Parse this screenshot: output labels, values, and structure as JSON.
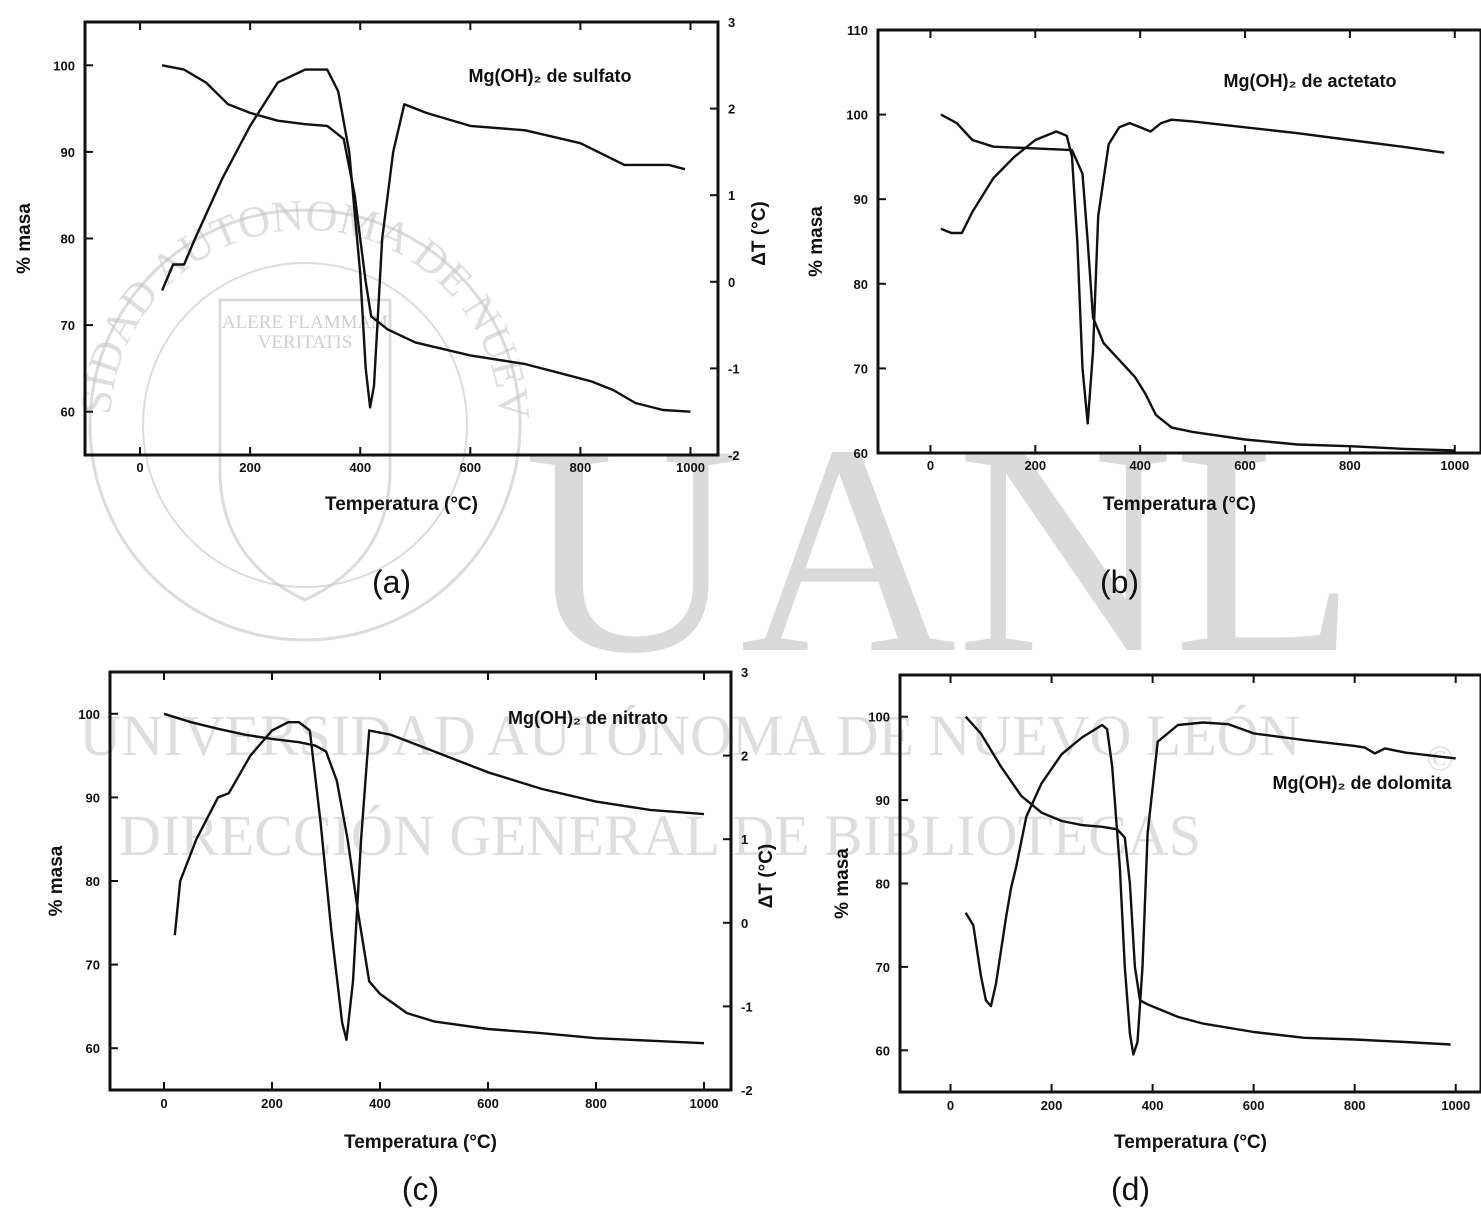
{
  "watermark": {
    "big": "UANL",
    "line1": "UNIVERSIDAD AUTÓNOMA DE NUEVO LEÓN",
    "line2": "DIRECCIÓN GENERAL DE BIBLIOTECAS",
    "seal_ring": "UNIVERSIDAD AUTONOMA DE NUEVO LEON",
    "seal_motto_1": "ALERE FLAMMAM",
    "seal_motto_2": "VERITATIS",
    "copyright": "©"
  },
  "chart_data": [
    {
      "panel": "(a)",
      "type": "line",
      "title": "Mg(OH)₂ de sulfato",
      "xlabel": "Temperatura (°C)",
      "ylabel": "% masa",
      "y2label": "ΔT (°C)",
      "xlim": [
        -100,
        1050
      ],
      "ylim": [
        55,
        105
      ],
      "y2lim": [
        -2,
        3
      ],
      "xticks": [
        "0",
        "200",
        "400",
        "600",
        "800",
        "1000"
      ],
      "yticks": [
        "60",
        "70",
        "80",
        "90",
        "100"
      ],
      "y2ticks": [
        "-2",
        "-1",
        "0",
        "1",
        "2",
        "3"
      ],
      "series": [
        {
          "axis": "left",
          "points": [
            [
              40,
              100
            ],
            [
              80,
              99.5
            ],
            [
              120,
              98
            ],
            [
              160,
              95.5
            ],
            [
              200,
              94.5
            ],
            [
              250,
              93.6
            ],
            [
              300,
              93.2
            ],
            [
              340,
              93
            ],
            [
              370,
              91.5
            ],
            [
              390,
              85
            ],
            [
              410,
              75
            ],
            [
              420,
              71
            ],
            [
              450,
              69.5
            ],
            [
              500,
              68
            ],
            [
              600,
              66.5
            ],
            [
              700,
              65.5
            ],
            [
              760,
              64.5
            ],
            [
              820,
              63.5
            ],
            [
              860,
              62.5
            ],
            [
              900,
              61
            ],
            [
              950,
              60.2
            ],
            [
              1000,
              60
            ]
          ]
        },
        {
          "axis": "right",
          "points": [
            [
              40,
              -0.1
            ],
            [
              60,
              0.2
            ],
            [
              70,
              0.2
            ],
            [
              80,
              0.2
            ],
            [
              100,
              0.5
            ],
            [
              150,
              1.2
            ],
            [
              200,
              1.8
            ],
            [
              250,
              2.3
            ],
            [
              300,
              2.45
            ],
            [
              340,
              2.45
            ],
            [
              360,
              2.2
            ],
            [
              380,
              1.5
            ],
            [
              400,
              0.1
            ],
            [
              410,
              -1
            ],
            [
              418,
              -1.45
            ],
            [
              425,
              -1.2
            ],
            [
              440,
              0.5
            ],
            [
              460,
              1.5
            ],
            [
              480,
              2.05
            ],
            [
              520,
              1.95
            ],
            [
              600,
              1.8
            ],
            [
              700,
              1.75
            ],
            [
              800,
              1.6
            ],
            [
              880,
              1.35
            ],
            [
              920,
              1.35
            ],
            [
              960,
              1.35
            ],
            [
              990,
              1.3
            ]
          ]
        }
      ]
    },
    {
      "panel": "(b)",
      "type": "line",
      "title": "Mg(OH)₂ de actetato",
      "xlabel": "Temperatura (°C)",
      "ylabel": "% masa",
      "xlim": [
        -100,
        1050
      ],
      "ylim": [
        60,
        110
      ],
      "xticks": [
        "0",
        "200",
        "400",
        "600",
        "800",
        "1000"
      ],
      "yticks": [
        "60",
        "70",
        "80",
        "90",
        "100",
        "110"
      ],
      "series": [
        {
          "axis": "left",
          "points": [
            [
              20,
              100
            ],
            [
              50,
              99
            ],
            [
              80,
              97
            ],
            [
              120,
              96.2
            ],
            [
              200,
              96
            ],
            [
              270,
              95.8
            ],
            [
              290,
              93
            ],
            [
              300,
              85
            ],
            [
              310,
              76
            ],
            [
              330,
              73
            ],
            [
              360,
              71
            ],
            [
              390,
              69
            ],
            [
              410,
              67
            ],
            [
              430,
              64.5
            ],
            [
              460,
              63
            ],
            [
              500,
              62.5
            ],
            [
              600,
              61.6
            ],
            [
              700,
              61
            ],
            [
              800,
              60.8
            ],
            [
              900,
              60.5
            ],
            [
              1000,
              60.3
            ]
          ]
        },
        {
          "axis": "right",
          "points": [
            [
              20,
              86.5
            ],
            [
              40,
              86
            ],
            [
              60,
              86
            ],
            [
              80,
              88.5
            ],
            [
              120,
              92.5
            ],
            [
              160,
              95
            ],
            [
              200,
              97
            ],
            [
              240,
              98
            ],
            [
              260,
              97.5
            ],
            [
              270,
              95
            ],
            [
              280,
              85
            ],
            [
              290,
              70
            ],
            [
              300,
              63.5
            ],
            [
              310,
              72
            ],
            [
              320,
              88
            ],
            [
              340,
              96.5
            ],
            [
              360,
              98.5
            ],
            [
              380,
              99
            ],
            [
              400,
              98.5
            ],
            [
              420,
              98
            ],
            [
              440,
              99
            ],
            [
              460,
              99.4
            ],
            [
              500,
              99.2
            ],
            [
              600,
              98.5
            ],
            [
              700,
              97.8
            ],
            [
              800,
              97
            ],
            [
              900,
              96.2
            ],
            [
              980,
              95.5
            ]
          ]
        }
      ]
    },
    {
      "panel": "(c)",
      "type": "line",
      "title": "Mg(OH)₂ de nitrato",
      "xlabel": "Temperatura (°C)",
      "ylabel": "% masa",
      "y2label": "ΔT (°C)",
      "xlim": [
        -100,
        1050
      ],
      "ylim": [
        55,
        105
      ],
      "y2lim": [
        -2,
        3
      ],
      "xticks": [
        "0",
        "200",
        "400",
        "600",
        "800",
        "1000"
      ],
      "yticks": [
        "60",
        "70",
        "80",
        "90",
        "100"
      ],
      "y2ticks": [
        "-2",
        "-1",
        "0",
        "1",
        "2",
        "3"
      ],
      "series": [
        {
          "axis": "left",
          "points": [
            [
              0,
              100
            ],
            [
              50,
              99
            ],
            [
              100,
              98.2
            ],
            [
              150,
              97.5
            ],
            [
              200,
              97
            ],
            [
              250,
              96.6
            ],
            [
              280,
              96.2
            ],
            [
              300,
              95.5
            ],
            [
              320,
              92
            ],
            [
              340,
              85
            ],
            [
              360,
              76
            ],
            [
              380,
              68
            ],
            [
              400,
              66.5
            ],
            [
              450,
              64.2
            ],
            [
              500,
              63.2
            ],
            [
              600,
              62.3
            ],
            [
              700,
              61.8
            ],
            [
              800,
              61.2
            ],
            [
              900,
              60.9
            ],
            [
              1000,
              60.6
            ]
          ]
        },
        {
          "axis": "right",
          "points": [
            [
              20,
              -0.15
            ],
            [
              30,
              0.5
            ],
            [
              60,
              1
            ],
            [
              100,
              1.5
            ],
            [
              120,
              1.55
            ],
            [
              160,
              2.0
            ],
            [
              200,
              2.3
            ],
            [
              230,
              2.4
            ],
            [
              250,
              2.4
            ],
            [
              270,
              2.3
            ],
            [
              290,
              1.2
            ],
            [
              310,
              -0.1
            ],
            [
              330,
              -1.2
            ],
            [
              338,
              -1.4
            ],
            [
              350,
              -0.7
            ],
            [
              365,
              1.0
            ],
            [
              380,
              2.3
            ],
            [
              420,
              2.25
            ],
            [
              500,
              2.05
            ],
            [
              600,
              1.8
            ],
            [
              700,
              1.6
            ],
            [
              800,
              1.45
            ],
            [
              900,
              1.35
            ],
            [
              1000,
              1.3
            ]
          ]
        }
      ]
    },
    {
      "panel": "(d)",
      "type": "line",
      "title": "Mg(OH)₂ de dolomita",
      "xlabel": "Temperatura (°C)",
      "ylabel": "% masa",
      "xlim": [
        -100,
        1050
      ],
      "ylim": [
        55,
        105
      ],
      "xticks": [
        "0",
        "200",
        "400",
        "600",
        "800",
        "1000"
      ],
      "yticks": [
        "60",
        "70",
        "80",
        "90",
        "100"
      ],
      "series": [
        {
          "axis": "left",
          "points": [
            [
              30,
              100
            ],
            [
              60,
              98
            ],
            [
              100,
              94
            ],
            [
              140,
              90.5
            ],
            [
              180,
              88.5
            ],
            [
              220,
              87.5
            ],
            [
              260,
              87
            ],
            [
              300,
              86.8
            ],
            [
              330,
              86.5
            ],
            [
              345,
              85.5
            ],
            [
              355,
              80
            ],
            [
              365,
              70
            ],
            [
              375,
              66
            ],
            [
              390,
              65.5
            ],
            [
              450,
              64
            ],
            [
              500,
              63.2
            ],
            [
              600,
              62.2
            ],
            [
              700,
              61.5
            ],
            [
              800,
              61.3
            ],
            [
              900,
              61
            ],
            [
              990,
              60.7
            ]
          ]
        },
        {
          "axis": "right",
          "points": [
            [
              30,
              76.5
            ],
            [
              45,
              75
            ],
            [
              60,
              69
            ],
            [
              70,
              66
            ],
            [
              80,
              65.3
            ],
            [
              90,
              68
            ],
            [
              110,
              76
            ],
            [
              120,
              79.5
            ],
            [
              130,
              82
            ],
            [
              150,
              88
            ],
            [
              180,
              92
            ],
            [
              220,
              95.5
            ],
            [
              260,
              97.5
            ],
            [
              300,
              99
            ],
            [
              310,
              98.5
            ],
            [
              320,
              94
            ],
            [
              335,
              82
            ],
            [
              345,
              70
            ],
            [
              355,
              62
            ],
            [
              362,
              59.5
            ],
            [
              370,
              61
            ],
            [
              380,
              70
            ],
            [
              390,
              86
            ],
            [
              410,
              97
            ],
            [
              450,
              99
            ],
            [
              500,
              99.3
            ],
            [
              550,
              99.1
            ],
            [
              600,
              98
            ],
            [
              700,
              97.2
            ],
            [
              800,
              96.5
            ],
            [
              820,
              96.3
            ],
            [
              840,
              95.6
            ],
            [
              860,
              96.2
            ],
            [
              900,
              95.7
            ],
            [
              1000,
              95
            ]
          ]
        }
      ]
    }
  ]
}
